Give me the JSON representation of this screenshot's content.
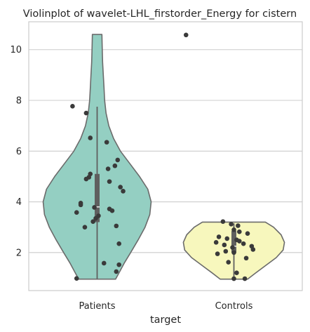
{
  "chart_data": {
    "type": "violin",
    "title": "Violinplot of wavelet-LHL_firstorder_Energy for cistern",
    "xlabel": "target",
    "ylabel": "",
    "categories": [
      "Patients",
      "Controls"
    ],
    "y_ticks": [
      2,
      4,
      6,
      8,
      10
    ],
    "y_tick_labels": [
      "2",
      "4",
      "6",
      "8",
      "10"
    ],
    "ylim": [
      0.5,
      11.1
    ],
    "grid": true,
    "colors": {
      "Patients": "#94cfc2",
      "Controls": "#f7f7bd",
      "outline": "#6b6b6b",
      "points": "#3a3a3a",
      "grid": "#cccccc",
      "box": "#5f5f5f",
      "median": "#e8e8e8"
    },
    "series": [
      {
        "name": "Patients",
        "box": {
          "q1": 3.2,
          "median": 3.8,
          "q3": 5.1,
          "whisker_low": 0.95,
          "whisker_high": 7.75
        },
        "violin_profile": [
          [
            0.95,
            0.27
          ],
          [
            1.2,
            0.32
          ],
          [
            1.6,
            0.4
          ],
          [
            2.0,
            0.49
          ],
          [
            2.5,
            0.6
          ],
          [
            3.0,
            0.7
          ],
          [
            3.5,
            0.77
          ],
          [
            4.0,
            0.79
          ],
          [
            4.5,
            0.74
          ],
          [
            5.0,
            0.62
          ],
          [
            5.5,
            0.48
          ],
          [
            6.0,
            0.34
          ],
          [
            6.5,
            0.24
          ],
          [
            7.0,
            0.17
          ],
          [
            7.5,
            0.13
          ],
          [
            8.0,
            0.11
          ],
          [
            8.5,
            0.1
          ],
          [
            9.0,
            0.09
          ],
          [
            9.5,
            0.08
          ],
          [
            10.0,
            0.075
          ],
          [
            10.6,
            0.07
          ]
        ],
        "points": [
          [
            0.65,
            10.58
          ],
          [
            -0.18,
            7.77
          ],
          [
            -0.08,
            7.5
          ],
          [
            -0.05,
            6.52
          ],
          [
            0.07,
            6.35
          ],
          [
            0.15,
            5.65
          ],
          [
            0.13,
            5.42
          ],
          [
            0.08,
            5.3
          ],
          [
            -0.05,
            5.1
          ],
          [
            -0.06,
            4.97
          ],
          [
            -0.08,
            4.9
          ],
          [
            0.09,
            4.8
          ],
          [
            0.17,
            4.58
          ],
          [
            0.19,
            4.42
          ],
          [
            -0.12,
            3.95
          ],
          [
            -0.12,
            3.88
          ],
          [
            -0.02,
            3.78
          ],
          [
            0.09,
            3.72
          ],
          [
            0.11,
            3.65
          ],
          [
            -0.15,
            3.58
          ],
          [
            0.01,
            3.45
          ],
          [
            -0.01,
            3.35
          ],
          [
            -0.03,
            3.22
          ],
          [
            0.14,
            3.05
          ],
          [
            -0.09,
            3.0
          ],
          [
            0.16,
            2.35
          ],
          [
            0.05,
            1.58
          ],
          [
            0.16,
            1.52
          ],
          [
            0.14,
            1.25
          ],
          [
            -0.15,
            0.98
          ]
        ]
      },
      {
        "name": "Controls",
        "box": {
          "q1": 2.0,
          "median": 2.25,
          "q3": 2.85,
          "whisker_low": 0.95,
          "whisker_high": 3.15
        },
        "violin_profile": [
          [
            0.95,
            0.2
          ],
          [
            1.2,
            0.32
          ],
          [
            1.5,
            0.47
          ],
          [
            1.8,
            0.62
          ],
          [
            2.1,
            0.72
          ],
          [
            2.4,
            0.74
          ],
          [
            2.7,
            0.69
          ],
          [
            3.0,
            0.58
          ],
          [
            3.2,
            0.46
          ]
        ],
        "points": [
          [
            -0.08,
            3.22
          ],
          [
            -0.02,
            3.12
          ],
          [
            0.03,
            3.06
          ],
          [
            0.0,
            2.9
          ],
          [
            0.04,
            2.82
          ],
          [
            0.1,
            2.75
          ],
          [
            -0.11,
            2.62
          ],
          [
            -0.05,
            2.55
          ],
          [
            0.02,
            2.5
          ],
          [
            0.04,
            2.45
          ],
          [
            -0.13,
            2.4
          ],
          [
            0.07,
            2.35
          ],
          [
            -0.07,
            2.3
          ],
          [
            0.13,
            2.25
          ],
          [
            -0.01,
            2.2
          ],
          [
            0.14,
            2.12
          ],
          [
            -0.06,
            2.05
          ],
          [
            0.0,
            2.0
          ],
          [
            -0.12,
            1.95
          ],
          [
            0.09,
            1.78
          ],
          [
            -0.04,
            1.62
          ],
          [
            0.02,
            1.2
          ],
          [
            0.0,
            0.97
          ],
          [
            0.08,
            0.97
          ]
        ]
      }
    ]
  }
}
